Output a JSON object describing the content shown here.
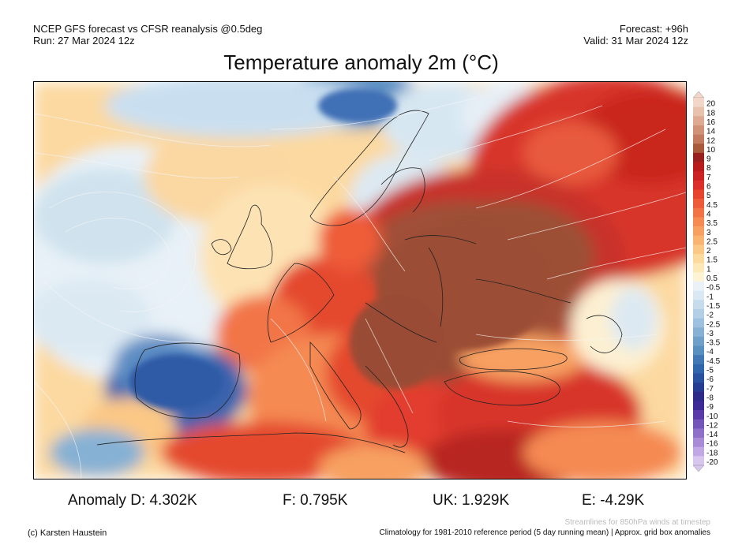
{
  "header": {
    "left_line1": "NCEP GFS forecast vs CFSR reanalysis @0.5deg",
    "left_line2": "Run: 27 Mar 2024 12z",
    "right_line1": "Forecast: +96h",
    "right_line2": "Valid: 31 Mar 2024 12z"
  },
  "title": "Temperature anomaly 2m (°C)",
  "legend": {
    "labels": [
      "20",
      "18",
      "16",
      "14",
      "12",
      "10",
      "9",
      "8",
      "7",
      "6",
      "5",
      "4.5",
      "4",
      "3.5",
      "3",
      "2.5",
      "2",
      "1.5",
      "1",
      "0.5",
      "-0.5",
      "-1",
      "-1.5",
      "-2",
      "-2.5",
      "-3",
      "-3.5",
      "-4",
      "-4.5",
      "-5",
      "-6",
      "-7",
      "-8",
      "-9",
      "-10",
      "-12",
      "-14",
      "-16",
      "-18",
      "-20"
    ],
    "colors": [
      "#f2d7c8",
      "#e8c2ac",
      "#deab92",
      "#d19377",
      "#c27b5e",
      "#a85a3b",
      "#9a2020",
      "#b81c1c",
      "#cc2222",
      "#dd2f2a",
      "#e8432f",
      "#ee5b38",
      "#f27446",
      "#f58a52",
      "#f7a062",
      "#f9b472",
      "#fbc886",
      "#fcd99c",
      "#fde8b8",
      "#fdf4d6",
      "#eaf2f8",
      "#d9e8f3",
      "#c6dced",
      "#b2cfe6",
      "#9dc1de",
      "#86b1d4",
      "#6ea0c9",
      "#5890c0",
      "#4279b4",
      "#3066ac",
      "#2852a0",
      "#243d92",
      "#2e2a8a",
      "#3d2a96",
      "#5a3aa8",
      "#7456bb",
      "#8e70c9",
      "#a88ad6",
      "#c1a7e3",
      "#d8c6ee"
    ]
  },
  "stats": {
    "de": "Anomaly D: 4.302K",
    "fr": "F: 0.795K",
    "uk": "UK: 1.929K",
    "es": "E: -4.29K"
  },
  "footer": {
    "credit": "(c) Karsten Haustein",
    "streamlines_note": "Streamlines for 850hPa winds at timestep",
    "climatology_note": "Climatology for 1981-2010 reference period (5 day running mean) | Approx. grid box anomalies"
  }
}
